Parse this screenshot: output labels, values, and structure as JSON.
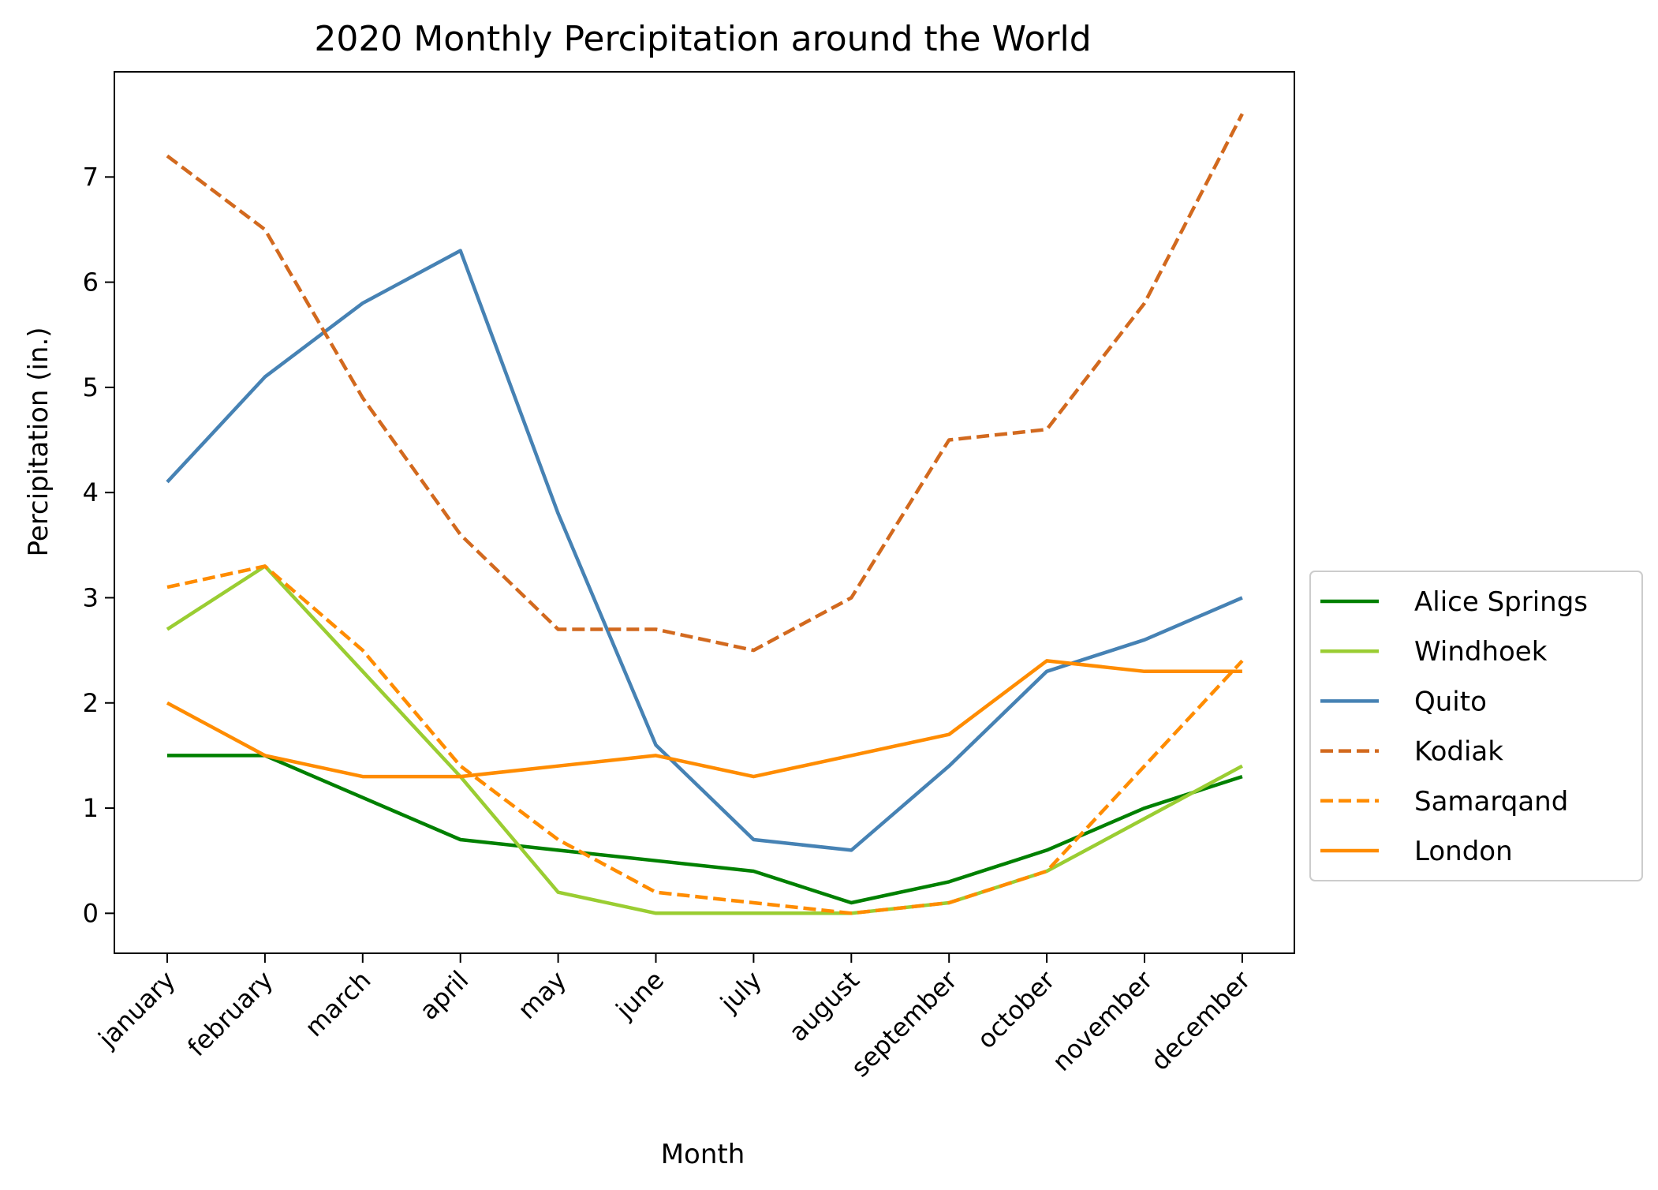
{
  "chart_data": {
    "type": "line",
    "title": "2020 Monthly Percipitation around the World",
    "xlabel": "Month",
    "ylabel": "Percipitation (in.)",
    "categories": [
      "january",
      "february",
      "march",
      "april",
      "may",
      "june",
      "july",
      "august",
      "september",
      "october",
      "november",
      "december"
    ],
    "ylim": [
      -0.38,
      8.0
    ],
    "yticks": [
      0,
      1,
      2,
      3,
      4,
      5,
      6,
      7
    ],
    "grid": false,
    "legend": "center-right-outside",
    "series": [
      {
        "name": "Alice Springs",
        "color": "#008000",
        "dash": "solid",
        "values": [
          1.5,
          1.5,
          1.1,
          0.7,
          0.6,
          0.5,
          0.4,
          0.1,
          0.3,
          0.6,
          1.0,
          1.3
        ]
      },
      {
        "name": "Windhoek",
        "color": "#9acd32",
        "dash": "solid",
        "values": [
          2.7,
          3.3,
          2.3,
          1.3,
          0.2,
          0.0,
          0.0,
          0.0,
          0.1,
          0.4,
          0.9,
          1.4
        ]
      },
      {
        "name": "Quito",
        "color": "#4682b4",
        "dash": "solid",
        "values": [
          4.1,
          5.1,
          5.8,
          6.3,
          3.8,
          1.6,
          0.7,
          0.6,
          1.4,
          2.3,
          2.6,
          3.0
        ]
      },
      {
        "name": "Kodiak",
        "color": "#d2691e",
        "dash": "dashed",
        "values": [
          7.2,
          6.5,
          4.9,
          3.6,
          2.7,
          2.7,
          2.5,
          3.0,
          4.5,
          4.6,
          5.8,
          7.6
        ]
      },
      {
        "name": "Samarqand",
        "color": "#ff8c00",
        "dash": "dashed",
        "values": [
          3.1,
          3.3,
          2.5,
          1.4,
          0.7,
          0.2,
          0.1,
          0.0,
          0.1,
          0.4,
          1.4,
          2.4
        ]
      },
      {
        "name": "London",
        "color": "#ff8c00",
        "dash": "solid",
        "values": [
          2.0,
          1.5,
          1.3,
          1.3,
          1.4,
          1.5,
          1.3,
          1.5,
          1.7,
          2.4,
          2.3,
          2.3
        ]
      }
    ]
  }
}
